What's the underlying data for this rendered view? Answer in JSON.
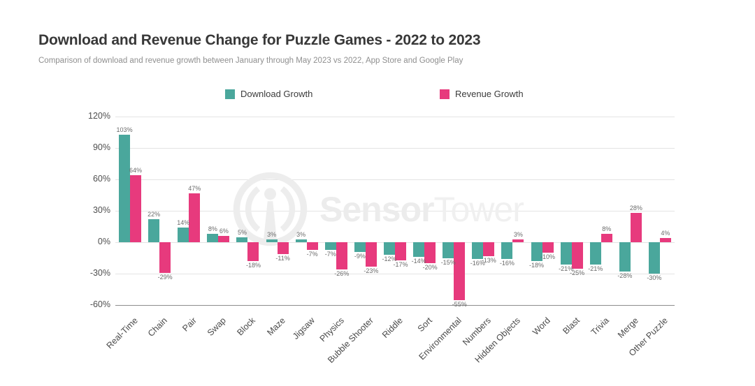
{
  "header": {
    "title": "Download and Revenue Change for Puzzle Games - 2022 to 2023",
    "subtitle": "Comparison of download and revenue growth between January through May 2023 vs 2022, App Store and Google Play"
  },
  "legend": {
    "items": [
      {
        "label": "Download Growth",
        "color": "#4aa79c"
      },
      {
        "label": "Revenue Growth",
        "color": "#e73a7d"
      }
    ]
  },
  "watermark": {
    "brand_bold": "Sensor",
    "brand_light": "Tower",
    "icon": "sensortower-logo-icon",
    "color": "#ededed"
  },
  "colors": {
    "download": "#4aa79c",
    "revenue": "#e73a7d",
    "gridline": "#e4e4e4",
    "axis_line": "#8c8c8c",
    "title_text": "#383838",
    "subtitle_text": "#8f8f8f",
    "tick_text": "#4f4f4f",
    "bar_label_text": "#6b6b6b"
  },
  "chart_data": {
    "type": "bar",
    "title": "Download and Revenue Change for Puzzle Games - 2022 to 2023",
    "subtitle": "Comparison of download and revenue growth between January through May 2023 vs 2022, App Store and Google Play",
    "categories": [
      "Real-Time",
      "Chain",
      "Pair",
      "Swap",
      "Block",
      "Maze",
      "Jigsaw",
      "Physics",
      "Bubble Shooter",
      "Riddle",
      "Sort",
      "Environmental",
      "Numbers",
      "Hidden Objects",
      "Word",
      "Blast",
      "Trivia",
      "Merge",
      "Other Puzzle"
    ],
    "series": [
      {
        "name": "Download Growth",
        "color": "#4aa79c",
        "values": [
          103,
          22,
          14,
          8,
          5,
          3,
          3,
          -7,
          -9,
          -12,
          -14,
          -15,
          -16,
          -16,
          -18,
          -21,
          -21,
          -28,
          -30
        ]
      },
      {
        "name": "Revenue Growth",
        "color": "#e73a7d",
        "values": [
          64,
          -29,
          47,
          6,
          -18,
          -11,
          -7,
          -26,
          -23,
          -17,
          -20,
          -55,
          -13,
          3,
          -10,
          -25,
          8,
          28,
          4
        ]
      }
    ],
    "value_suffix": "%",
    "bar_labels": true,
    "yticks": [
      120,
      90,
      60,
      30,
      0,
      -30,
      -60
    ],
    "ylim": [
      -60,
      120
    ],
    "xlabel": "",
    "ylabel": "",
    "grid": true,
    "legend_position": "top"
  }
}
